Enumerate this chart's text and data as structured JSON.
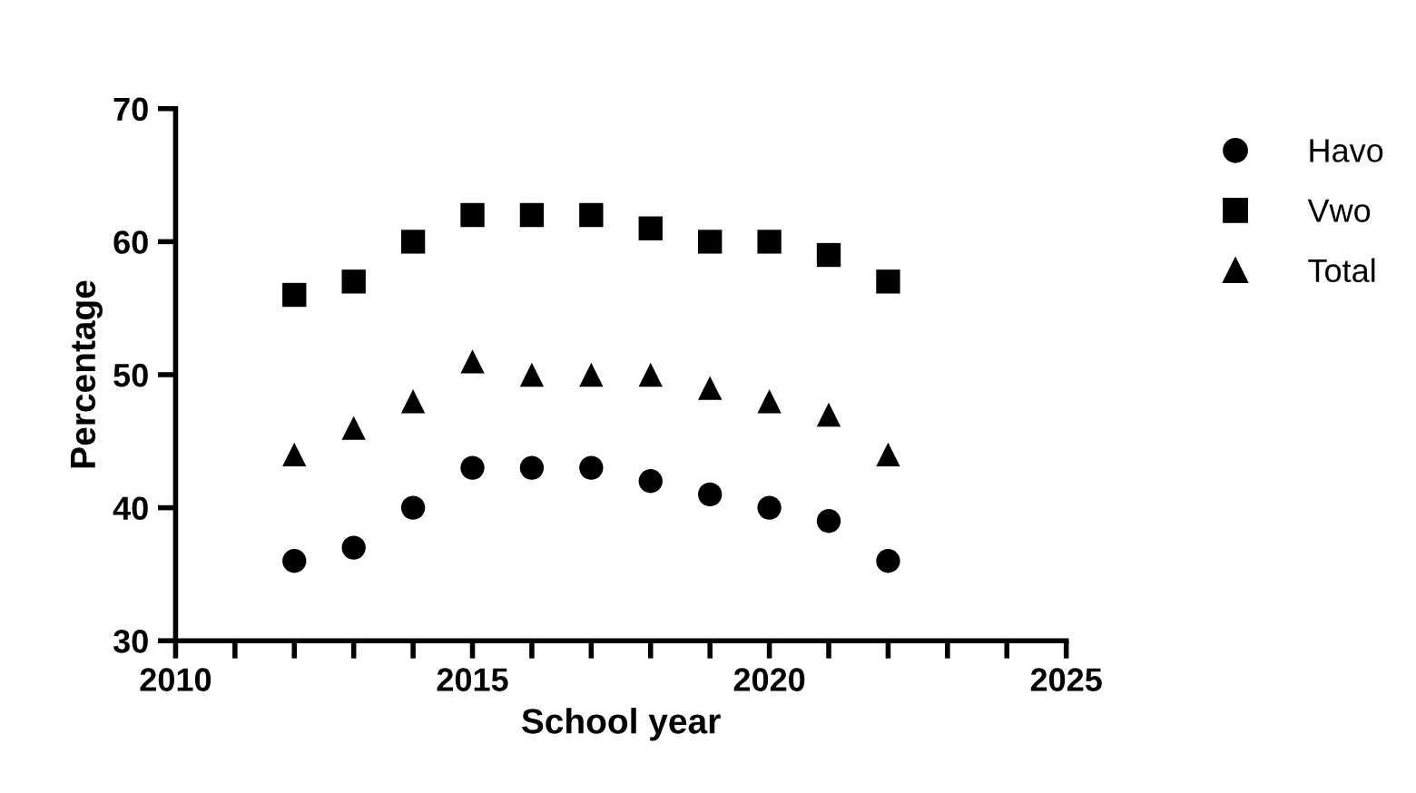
{
  "chart_data": {
    "type": "scatter",
    "xlabel": "School year",
    "ylabel": "Percentage",
    "x": [
      2012,
      2013,
      2014,
      2015,
      2016,
      2017,
      2018,
      2019,
      2020,
      2021,
      2022
    ],
    "series": [
      {
        "name": "Havo",
        "color": "#000000",
        "marker": "circle",
        "values": [
          36,
          37,
          40,
          43,
          43,
          43,
          42,
          41,
          40,
          39,
          36
        ]
      },
      {
        "name": "Vwo",
        "color": "#000000",
        "marker": "square",
        "values": [
          56,
          57,
          60,
          62,
          62,
          62,
          61,
          60,
          60,
          59,
          57
        ]
      },
      {
        "name": "Total",
        "color": "#000000",
        "marker": "triangle",
        "values": [
          44,
          46,
          48,
          51,
          50,
          50,
          50,
          49,
          48,
          47,
          44
        ]
      }
    ],
    "xlim": [
      2010,
      2025
    ],
    "xticks": [
      2010,
      {
        "value": 2011,
        "label": null
      },
      {
        "value": 2012,
        "label": null
      },
      {
        "value": 2013,
        "label": null
      },
      {
        "value": 2014,
        "label": null
      },
      2015,
      {
        "value": 2016,
        "label": null
      },
      {
        "value": 2017,
        "label": null
      },
      {
        "value": 2018,
        "label": null
      },
      {
        "value": 2019,
        "label": null
      },
      2020,
      {
        "value": 2021,
        "label": null
      },
      {
        "value": 2022,
        "label": null
      },
      {
        "value": 2023,
        "label": null
      },
      {
        "value": 2024,
        "label": null
      },
      2025
    ],
    "ylim": [
      30,
      70
    ],
    "yticks": [
      30,
      40,
      50,
      60,
      70
    ],
    "grid": false,
    "legend": "top right"
  }
}
